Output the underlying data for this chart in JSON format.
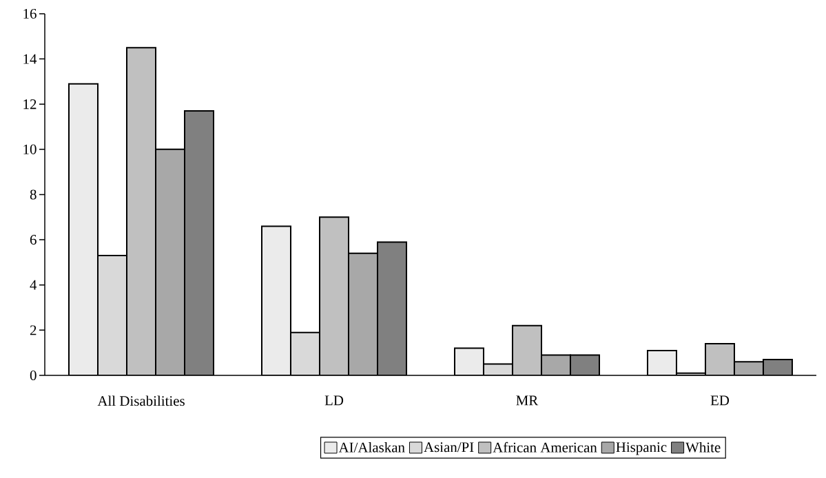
{
  "chart_data": {
    "type": "bar",
    "categories": [
      "All Disabilities",
      "LD",
      "MR",
      "ED"
    ],
    "series": [
      {
        "name": "AI/Alaskan",
        "color": "#ebebeb",
        "values": [
          12.9,
          6.6,
          1.2,
          1.1
        ]
      },
      {
        "name": "Asian/PI",
        "color": "#d9d9d9",
        "values": [
          5.3,
          1.9,
          0.5,
          0.1
        ]
      },
      {
        "name": "African American",
        "color": "#c0c0c0",
        "values": [
          14.5,
          7.0,
          2.2,
          1.4
        ]
      },
      {
        "name": "Hispanic",
        "color": "#a8a8a8",
        "values": [
          10.0,
          5.4,
          0.9,
          0.6
        ]
      },
      {
        "name": "White",
        "color": "#808080",
        "values": [
          11.7,
          5.9,
          0.9,
          0.7
        ]
      }
    ],
    "ylim": [
      0,
      16
    ],
    "yticks": [
      0,
      2,
      4,
      6,
      8,
      10,
      12,
      14,
      16
    ],
    "legend": "bottom"
  }
}
